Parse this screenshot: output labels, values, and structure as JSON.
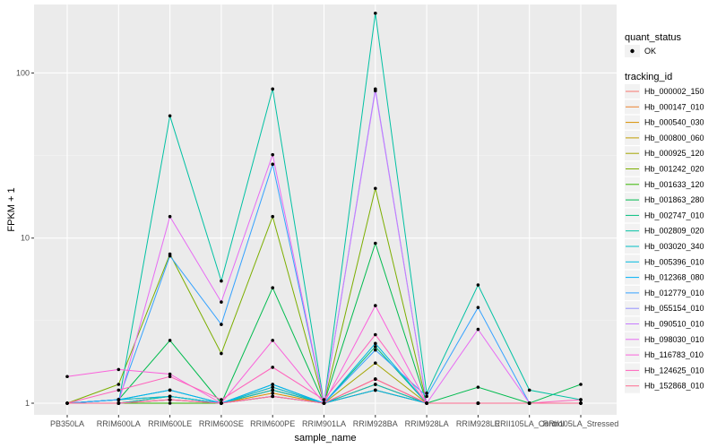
{
  "chart_data": {
    "type": "line",
    "xlabel": "sample_name",
    "ylabel": "FPKM + 1",
    "yscale": "log10",
    "ylim": [
      0.85,
      260
    ],
    "yticks": [
      1,
      10,
      100
    ],
    "categories": [
      "PB350LA",
      "RRIM600LA",
      "RRIM600LE",
      "RRIM600SE",
      "RRIM600PE",
      "RRIM901LA",
      "RRIM928BA",
      "RRIM928LA",
      "RRIM928LE",
      "RRII105LA_Control",
      "RRII105LA_Stressed"
    ],
    "category_labels": [
      "PB350LA",
      "RRIM600LA",
      "RRIM600LE",
      "RRIM600SE",
      "RRIM600PE",
      "RRIM901LA",
      "RRIM928BA",
      "RRIM928LA",
      "RRIM928LE",
      "RRII105LA_Control",
      "RRII105LA_Stressed"
    ],
    "legend_shape": {
      "title": "quant_status",
      "items": [
        "OK"
      ]
    },
    "legend_color_title": "tracking_id",
    "series": [
      {
        "name": "Hb_000002_150",
        "color": "#F8766D",
        "values": [
          1,
          1,
          1.1,
          1,
          1.2,
          1,
          1.3,
          1,
          1,
          1,
          1
        ]
      },
      {
        "name": "Hb_000147_010",
        "color": "#EA8331",
        "values": [
          1,
          1,
          1.05,
          1,
          1.1,
          1,
          1.2,
          1,
          1,
          1,
          1
        ]
      },
      {
        "name": "Hb_000540_030",
        "color": "#D89000",
        "values": [
          1,
          1,
          1.05,
          1,
          1.15,
          1,
          1.3,
          1,
          1,
          1,
          1
        ]
      },
      {
        "name": "Hb_000800_060",
        "color": "#C09B00",
        "values": [
          1,
          1,
          1.1,
          1,
          1.2,
          1,
          1.4,
          1,
          1,
          1,
          1
        ]
      },
      {
        "name": "Hb_000925_120",
        "color": "#A3A500",
        "values": [
          1,
          1.05,
          1.1,
          1,
          1.25,
          1,
          1.75,
          1,
          1,
          1,
          1
        ]
      },
      {
        "name": "Hb_001242_020",
        "color": "#7CAE00",
        "values": [
          1,
          1.3,
          8,
          2,
          13.5,
          1,
          20,
          1,
          1,
          1,
          1
        ]
      },
      {
        "name": "Hb_001633_120",
        "color": "#39B600",
        "values": [
          1,
          1,
          1,
          1,
          1.1,
          1,
          1.2,
          1,
          1,
          1,
          1
        ]
      },
      {
        "name": "Hb_001863_280",
        "color": "#00BB4E",
        "values": [
          1,
          1.05,
          2.4,
          1,
          5,
          1,
          9.3,
          1,
          1.25,
          1,
          1.3
        ]
      },
      {
        "name": "Hb_002747_010",
        "color": "#00BF7D",
        "values": [
          1,
          1.05,
          1.2,
          1,
          1.3,
          1,
          2.2,
          1,
          1,
          1,
          1
        ]
      },
      {
        "name": "Hb_002809_020",
        "color": "#00C1A3",
        "values": [
          1,
          1,
          55,
          5.5,
          80,
          1,
          230,
          1.15,
          5.2,
          1.2,
          1.05
        ]
      },
      {
        "name": "Hb_003020_340",
        "color": "#00BFC4",
        "values": [
          1,
          1,
          1.1,
          1,
          1.2,
          1,
          1.3,
          1,
          1,
          1,
          1
        ]
      },
      {
        "name": "Hb_005396_010",
        "color": "#00BAE0",
        "values": [
          1,
          1.05,
          1.1,
          1,
          1.25,
          1,
          2.3,
          1,
          1,
          1,
          1
        ]
      },
      {
        "name": "Hb_012368_080",
        "color": "#00B0F6",
        "values": [
          1,
          1.05,
          1.2,
          1,
          1.3,
          1,
          1.2,
          1,
          1,
          1,
          1
        ]
      },
      {
        "name": "Hb_012779_010",
        "color": "#35A2FF",
        "values": [
          1,
          1.05,
          7.8,
          3,
          28,
          1,
          2.1,
          1.1,
          3.8,
          1,
          1
        ]
      },
      {
        "name": "Hb_055154_010",
        "color": "#9590FF",
        "values": [
          1,
          1,
          1.05,
          1,
          1.1,
          1,
          80,
          1,
          1,
          1,
          1
        ]
      },
      {
        "name": "Hb_090510_010",
        "color": "#C77CFF",
        "values": [
          1,
          1,
          1.05,
          1,
          1.1,
          1,
          78,
          1,
          1,
          1,
          1
        ]
      },
      {
        "name": "Hb_098030_010",
        "color": "#E76BF3",
        "values": [
          1,
          1,
          13.5,
          4.1,
          32,
          1,
          1.4,
          1,
          2.8,
          1,
          1
        ]
      },
      {
        "name": "Hb_116783_010",
        "color": "#FA62DB",
        "values": [
          1.45,
          1.6,
          1.5,
          1,
          2.4,
          1,
          3.9,
          1,
          1,
          1,
          1
        ]
      },
      {
        "name": "Hb_124625_010",
        "color": "#FF62BC",
        "values": [
          1,
          1.2,
          1.45,
          1.05,
          1.65,
          1.05,
          2.6,
          1,
          1,
          1,
          1.05
        ]
      },
      {
        "name": "Hb_152868_010",
        "color": "#FF6C91",
        "values": [
          1,
          1,
          1.05,
          1,
          1.1,
          1,
          1.4,
          1,
          1,
          1,
          1
        ]
      }
    ]
  }
}
